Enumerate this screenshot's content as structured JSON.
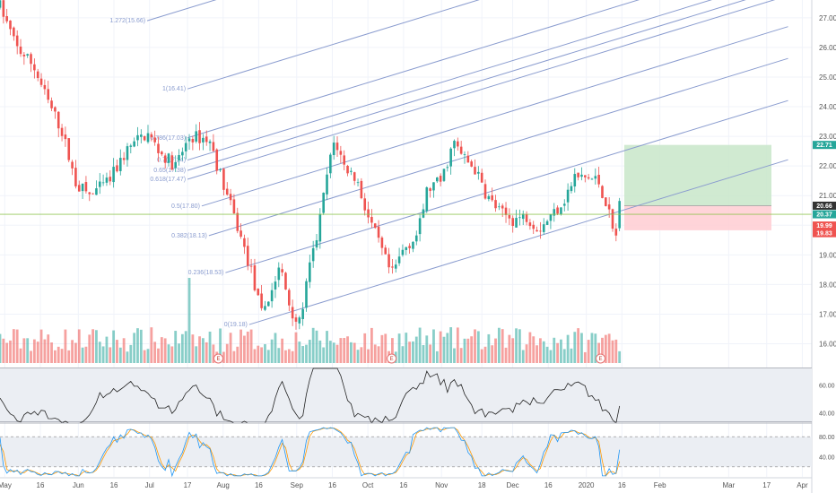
{
  "chart_data": {
    "type": "candlestick",
    "price_axis": {
      "ylim": [
        15.2,
        27.6
      ],
      "ticks": [
        "16.00",
        "17.00",
        "18.00",
        "19.00",
        "20.00",
        "21.00",
        "22.00",
        "23.00",
        "24.00",
        "25.00",
        "26.00",
        "27.00"
      ],
      "tags": [
        {
          "label": "22.71",
          "value": 22.71,
          "color": "#26a69a"
        },
        {
          "label": "20.66",
          "value": 20.66,
          "color": "#333333"
        },
        {
          "label": "20.37",
          "value": 20.37,
          "color": "#26a69a"
        },
        {
          "label": "19.99",
          "value": 19.99,
          "color": "#ef5350"
        },
        {
          "label": "19.83",
          "value": 19.83,
          "color": "#ef5350"
        }
      ]
    },
    "time_axis": {
      "ticks": [
        {
          "label": "May",
          "day": 0
        },
        {
          "label": "16",
          "day": 15
        },
        {
          "label": "Jun",
          "day": 31
        },
        {
          "label": "16",
          "day": 46
        },
        {
          "label": "Jul",
          "day": 61
        },
        {
          "label": "17",
          "day": 77
        },
        {
          "label": "Aug",
          "day": 92
        },
        {
          "label": "16",
          "day": 107
        },
        {
          "label": "Sep",
          "day": 123
        },
        {
          "label": "16",
          "day": 138
        },
        {
          "label": "Oct",
          "day": 153
        },
        {
          "label": "16",
          "day": 168
        },
        {
          "label": "Nov",
          "day": 184
        },
        {
          "label": "18",
          "day": 201
        },
        {
          "label": "Dec",
          "day": 214
        },
        {
          "label": "16",
          "day": 229
        },
        {
          "label": "2020",
          "day": 245
        },
        {
          "label": "16",
          "day": 260
        },
        {
          "label": "Feb",
          "day": 276
        },
        {
          "label": "Mar",
          "day": 305
        },
        {
          "label": "17",
          "day": 321
        },
        {
          "label": "Apr",
          "day": 336
        }
      ],
      "xlim": [
        -2,
        340
      ]
    },
    "pivots": [
      {
        "day": -2,
        "price": 27.4
      },
      {
        "day": 5,
        "price": 26.0
      },
      {
        "day": 12,
        "price": 25.4
      },
      {
        "day": 18,
        "price": 24.2
      },
      {
        "day": 24,
        "price": 23.2
      },
      {
        "day": 30,
        "price": 21.4
      },
      {
        "day": 36,
        "price": 21.0
      },
      {
        "day": 44,
        "price": 21.5
      },
      {
        "day": 52,
        "price": 22.6
      },
      {
        "day": 60,
        "price": 23.1
      },
      {
        "day": 66,
        "price": 22.4
      },
      {
        "day": 72,
        "price": 22.0
      },
      {
        "day": 78,
        "price": 23.0
      },
      {
        "day": 86,
        "price": 22.9
      },
      {
        "day": 92,
        "price": 21.4
      },
      {
        "day": 97,
        "price": 20.2
      },
      {
        "day": 104,
        "price": 18.4
      },
      {
        "day": 108,
        "price": 17.0
      },
      {
        "day": 112,
        "price": 17.7
      },
      {
        "day": 116,
        "price": 18.6
      },
      {
        "day": 120,
        "price": 17.3
      },
      {
        "day": 124,
        "price": 16.6
      },
      {
        "day": 128,
        "price": 18.4
      },
      {
        "day": 132,
        "price": 19.8
      },
      {
        "day": 136,
        "price": 21.8
      },
      {
        "day": 139,
        "price": 22.9
      },
      {
        "day": 143,
        "price": 22.0
      },
      {
        "day": 148,
        "price": 21.6
      },
      {
        "day": 153,
        "price": 20.3
      },
      {
        "day": 157,
        "price": 19.5
      },
      {
        "day": 163,
        "price": 18.3
      },
      {
        "day": 168,
        "price": 19.2
      },
      {
        "day": 174,
        "price": 19.7
      },
      {
        "day": 178,
        "price": 21.2
      },
      {
        "day": 184,
        "price": 21.5
      },
      {
        "day": 189,
        "price": 22.8
      },
      {
        "day": 193,
        "price": 22.3
      },
      {
        "day": 198,
        "price": 21.9
      },
      {
        "day": 203,
        "price": 21.0
      },
      {
        "day": 209,
        "price": 20.4
      },
      {
        "day": 214,
        "price": 20.2
      },
      {
        "day": 220,
        "price": 20.3
      },
      {
        "day": 225,
        "price": 19.9
      },
      {
        "day": 230,
        "price": 20.3
      },
      {
        "day": 236,
        "price": 20.9
      },
      {
        "day": 240,
        "price": 21.6
      },
      {
        "day": 245,
        "price": 21.6
      },
      {
        "day": 250,
        "price": 21.5
      },
      {
        "day": 254,
        "price": 20.6
      },
      {
        "day": 257,
        "price": 19.5
      },
      {
        "day": 260,
        "price": 20.3
      }
    ],
    "fib_levels": [
      {
        "label": "1.272(15.66)",
        "day": 60,
        "price": 26.9
      },
      {
        "label": "1(16.41)",
        "day": 77,
        "price": 24.6
      },
      {
        "label": "0.786(17.03)",
        "day": 77,
        "price": 22.95
      },
      {
        "label": "0.7(17.24)",
        "day": 77,
        "price": 22.2
      },
      {
        "label": "0.65(17.38)",
        "day": 77,
        "price": 21.85
      },
      {
        "label": "0.618(17.47)",
        "day": 77,
        "price": 21.55
      },
      {
        "label": "0.5(17.80)",
        "day": 83,
        "price": 20.65
      },
      {
        "label": "0.382(18.13)",
        "day": 86,
        "price": 19.65
      },
      {
        "label": "0.236(18.53)",
        "day": 93,
        "price": 18.4
      },
      {
        "label": "0(19.18)",
        "day": 103,
        "price": 16.65
      }
    ],
    "fib_slope_per_day": 0.0245,
    "fib_end_day": 330,
    "position": {
      "start_day": 261,
      "end_day": 323,
      "target": 22.71,
      "entry": 20.66,
      "stop": 19.83
    },
    "current_price": 20.37,
    "earnings_days": [
      90,
      163,
      251
    ],
    "earnings_label": "E",
    "rsi": {
      "ylim": [
        34,
        72
      ],
      "ticks": [
        "60.00",
        "40.00"
      ],
      "band": [
        30,
        70
      ],
      "last": 45
    },
    "stochastic": {
      "ylim": [
        0,
        100
      ],
      "ticks": [
        "80.00",
        "40.00"
      ],
      "band": [
        20,
        80
      ]
    },
    "colors": {
      "up": "#26a69a",
      "down": "#ef5350",
      "fib": "#8a9ccf",
      "rsi": "#222222",
      "stoch_k": "#2196f3",
      "stoch_d": "#ff9800",
      "profit": "#c8e6c9",
      "loss": "#ffcdd2",
      "current_line": "#8bc34a"
    }
  }
}
